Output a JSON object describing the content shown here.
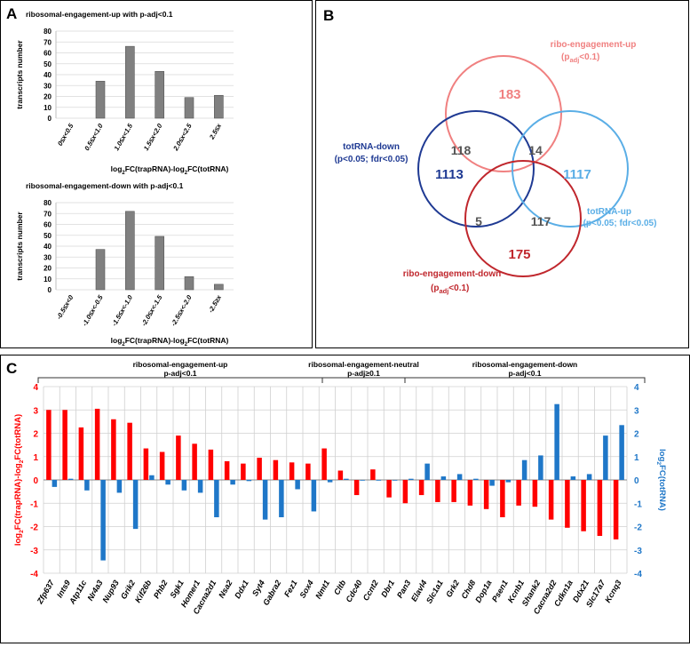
{
  "panel_a_label": "A",
  "panel_b_label": "B",
  "panel_c_label": "C",
  "chart_data": [
    {
      "id": "a_up",
      "type": "bar",
      "title": "ribosomal-engagement-up with p-adj<0.1",
      "ylabel": "transcripts number",
      "xlabel": "log2FC(trapRNA)-log2FC(totRNA)",
      "ylim": [
        0,
        80
      ],
      "yticks": [
        0,
        10,
        20,
        30,
        40,
        50,
        60,
        70,
        80
      ],
      "categories": [
        "0≤x<0.5",
        "0.5≤x<1.0",
        "1.0≤x<1.5",
        "1.5≤x<2.0",
        "2.0≤x<2.5",
        "2.5≤x"
      ],
      "values": [
        0,
        34,
        66,
        43,
        19,
        21
      ],
      "bar_color": "#808080"
    },
    {
      "id": "a_down",
      "type": "bar",
      "title": "ribosomal-engagement-down with p-adj<0.1",
      "ylabel": "transcripts number",
      "xlabel": "log2FC(trapRNA)-log2FC(totRNA)",
      "ylim": [
        0,
        80
      ],
      "yticks": [
        0,
        10,
        20,
        30,
        40,
        50,
        60,
        70,
        80
      ],
      "categories": [
        "-0.5≤x<0",
        "-1.0≤x<-0.5",
        "-1.5≤x<-1.0",
        "-2.0≤x<-1.5",
        "-2.5≤x<-2.0",
        "-2.5≥x"
      ],
      "values": [
        0,
        37,
        72,
        49,
        12,
        5
      ],
      "bar_color": "#808080"
    },
    {
      "id": "b_venn",
      "type": "venn",
      "sets": [
        {
          "name": "ribo-engagement-up",
          "sub": "(padj<0.1)",
          "color": "#f08080"
        },
        {
          "name": "totRNA-down",
          "sub": "(p<0.05; fdr<0.05)",
          "color": "#1f3a93"
        },
        {
          "name": "totRNA-up",
          "sub": "(p<0.05; fdr<0.05)",
          "color": "#5aaee6"
        },
        {
          "name": "ribo-engagement-down",
          "sub": "(padj<0.1)",
          "color": "#c0272d"
        }
      ],
      "counts": {
        "up_only": 183,
        "totdown_only": 1113,
        "totup_only": 1117,
        "down_only": 175,
        "up_totdown": 118,
        "up_totup": 14,
        "down_totdown": 5,
        "down_totup": 117
      }
    },
    {
      "id": "c_genes",
      "type": "bar",
      "ylabel_left": "log2FC(trapRNA)-log2FC(totRNA)",
      "ylabel_right": "log2FC(totRNA)",
      "ylim": [
        -4,
        4
      ],
      "yticks": [
        -4,
        -3,
        -2,
        -1,
        0,
        1,
        2,
        3,
        4
      ],
      "groups": [
        {
          "label": "ribosomal-engagement-up",
          "sub": "p-adj<0.1",
          "start": 0,
          "end": 17
        },
        {
          "label": "ribosomal-engagement-neutral",
          "sub": "p-adj≥0.1",
          "start": 18,
          "end": 22
        },
        {
          "label": "ribosomal-engagement-down",
          "sub": "p-adj<0.1",
          "start": 23,
          "end": 40
        }
      ],
      "categories": [
        "Zfp637",
        "Ints9",
        "Atp11c",
        "Nr4a3",
        "Nup93",
        "Grik2",
        "Kif26b",
        "Phb2",
        "Sgk1",
        "Homer1",
        "Cacna2d1",
        "Nsa2",
        "Ddx1",
        "Syt4",
        "Gabra2",
        "Fez1",
        "Sox4",
        "Nmt1",
        "Cltb",
        "Cdc40",
        "Ccnt2",
        "Dbr1",
        "Pan3",
        "Elavl4",
        "Slc1a1",
        "Grk2",
        "Chd8",
        "Dop1a",
        "Psen1",
        "Kcnb1",
        "Shank2",
        "Cacna2d2",
        "Cdkn1a",
        "Ddx21",
        "Slc17a7",
        "Kcnq3"
      ],
      "series": [
        {
          "name": "log2FC(trapRNA)-log2FC(totRNA)",
          "color": "#ff0000",
          "values": [
            3.0,
            3.0,
            2.25,
            3.05,
            2.6,
            2.45,
            1.35,
            1.2,
            1.9,
            1.55,
            1.3,
            0.8,
            0.7,
            0.95,
            0.85,
            0.75,
            0.7,
            1.35,
            0.4,
            -0.65,
            0.45,
            -0.75,
            -1.0,
            -0.65,
            -0.95,
            -0.95,
            -1.1,
            -1.25,
            -1.6,
            -1.1,
            -1.15,
            -1.7,
            -2.05,
            -2.2,
            -2.4,
            -2.55
          ]
        },
        {
          "name": "log2FC(totRNA)",
          "color": "#1f77c8",
          "values": [
            -0.3,
            0.05,
            -0.45,
            -3.45,
            -0.55,
            -2.1,
            0.2,
            -0.2,
            -0.45,
            -0.55,
            -1.6,
            -0.2,
            -0.05,
            -1.7,
            -1.6,
            -0.4,
            -1.35,
            -0.1,
            0.05,
            0.0,
            0.0,
            0.0,
            0.05,
            0.7,
            0.15,
            0.25,
            0.05,
            -0.25,
            -0.1,
            0.85,
            1.05,
            3.25,
            0.15,
            0.25,
            1.9,
            2.35
          ]
        }
      ]
    }
  ]
}
